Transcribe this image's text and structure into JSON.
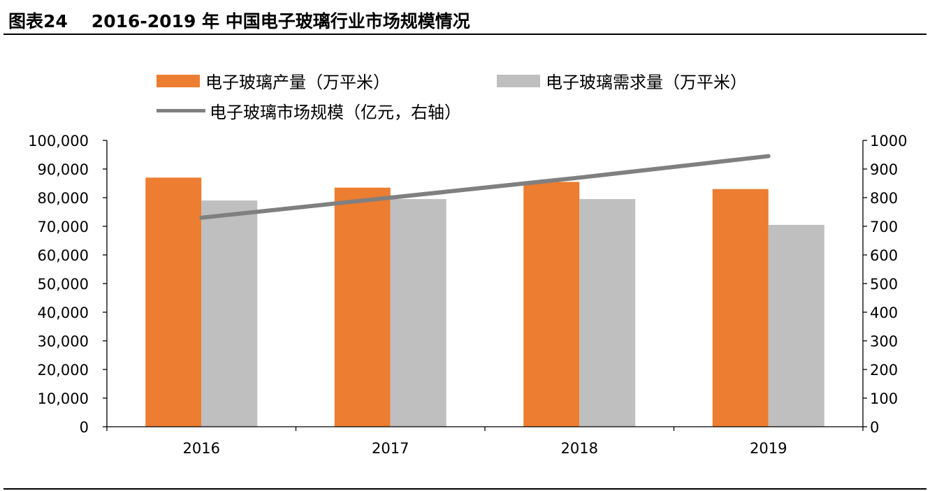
{
  "figure": {
    "number": "图表24",
    "title": "2016-2019 年 中国电子玻璃行业市场规模情况"
  },
  "chart_data": {
    "type": "bar",
    "categories": [
      "2016",
      "2017",
      "2018",
      "2019"
    ],
    "series": [
      {
        "name": "电子玻璃产量（万平米）",
        "type": "bar",
        "axis": "left",
        "color": "#ED7D31",
        "values": [
          87000,
          83500,
          85500,
          83000
        ]
      },
      {
        "name": "电子玻璃需求量（万平米）",
        "type": "bar",
        "axis": "left",
        "color": "#BFBFBF",
        "values": [
          79000,
          79500,
          79500,
          70500
        ]
      },
      {
        "name": "电子玻璃市场规模（亿元，右轴）",
        "type": "line",
        "axis": "right",
        "color": "#808080",
        "values": [
          730,
          800,
          870,
          945
        ]
      }
    ],
    "left_axis": {
      "ylim": [
        0,
        100000
      ],
      "step": 10000,
      "tick_labels": [
        "0",
        "10,000",
        "20,000",
        "30,000",
        "40,000",
        "50,000",
        "60,000",
        "70,000",
        "80,000",
        "90,000",
        "100,000"
      ]
    },
    "right_axis": {
      "ylim": [
        0,
        1000
      ],
      "step": 100,
      "tick_labels": [
        "0",
        "100",
        "200",
        "300",
        "400",
        "500",
        "600",
        "700",
        "800",
        "900",
        "1000"
      ]
    },
    "grid": false,
    "legend_position": "top"
  }
}
